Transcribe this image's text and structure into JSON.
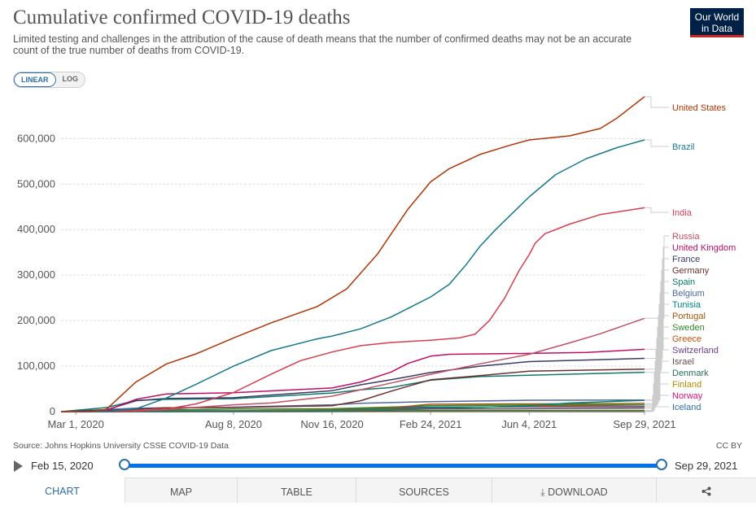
{
  "header": {
    "title": "Cumulative confirmed COVID-19 deaths",
    "subtitle": "Limited testing and challenges in the attribution of the cause of death means that the number of confirmed deaths may not be an accurate count of the true number of deaths from COVID-19.",
    "logo_line1": "Our World",
    "logo_line2": "in Data",
    "logo_color": "#002147",
    "logo_accent": "#ce261e"
  },
  "scale_toggle": {
    "linear": "LINEAR",
    "log": "LOG",
    "selected": "LINEAR"
  },
  "footer": {
    "source": "Source: Johns Hopkins University CSSE COVID-19 Data",
    "license": "CC BY"
  },
  "timeline": {
    "start": "Feb 15, 2020",
    "end": "Sep 29, 2021"
  },
  "tabs": [
    {
      "label": "CHART",
      "active": true
    },
    {
      "label": "MAP",
      "active": false
    },
    {
      "label": "TABLE",
      "active": false
    },
    {
      "label": "SOURCES",
      "active": false
    },
    {
      "label": "DOWNLOAD",
      "active": false,
      "icon": "download-icon"
    },
    {
      "label": "",
      "active": false,
      "icon": "share-icon"
    }
  ],
  "chart_data": {
    "type": "line",
    "title": "Cumulative confirmed COVID-19 deaths",
    "y_scale": "linear",
    "ylim": [
      0,
      690000
    ],
    "yticks": [
      0,
      100000,
      200000,
      300000,
      400000,
      500000,
      600000
    ],
    "ytick_labels": [
      "0",
      "100,000",
      "200,000",
      "300,000",
      "400,000",
      "500,000",
      "600,000"
    ],
    "xlim": [
      "2020-02-15",
      "2021-09-29"
    ],
    "xticks": [
      "2020-03-01",
      "2020-08-08",
      "2020-11-16",
      "2021-02-24",
      "2021-06-04",
      "2021-09-29"
    ],
    "xtick_labels": [
      "Mar 1, 2020",
      "Aug 8, 2020",
      "Nov 16, 2020",
      "Feb 24, 2021",
      "Jun 4, 2021",
      "Sep 29, 2021"
    ],
    "grid": "horizontal dashed",
    "legend": "right",
    "series": [
      {
        "name": "United States",
        "color": "#b13507",
        "points": [
          [
            "2020-02-15",
            0
          ],
          [
            "2020-03-15",
            100
          ],
          [
            "2020-04-01",
            5000
          ],
          [
            "2020-05-01",
            65000
          ],
          [
            "2020-06-01",
            105000
          ],
          [
            "2020-07-01",
            127000
          ],
          [
            "2020-08-08",
            162000
          ],
          [
            "2020-09-15",
            195000
          ],
          [
            "2020-11-01",
            231000
          ],
          [
            "2020-12-01",
            270000
          ],
          [
            "2021-01-01",
            346000
          ],
          [
            "2021-02-01",
            445000
          ],
          [
            "2021-02-24",
            505000
          ],
          [
            "2021-03-15",
            534000
          ],
          [
            "2021-04-15",
            565000
          ],
          [
            "2021-05-15",
            585000
          ],
          [
            "2021-06-04",
            597000
          ],
          [
            "2021-07-15",
            606000
          ],
          [
            "2021-08-15",
            622000
          ],
          [
            "2021-09-01",
            645000
          ],
          [
            "2021-09-29",
            692000
          ]
        ]
      },
      {
        "name": "Brazil",
        "color": "#18798b",
        "points": [
          [
            "2020-02-15",
            0
          ],
          [
            "2020-04-01",
            200
          ],
          [
            "2020-05-01",
            6000
          ],
          [
            "2020-06-01",
            30000
          ],
          [
            "2020-07-01",
            60000
          ],
          [
            "2020-08-08",
            100000
          ],
          [
            "2020-09-15",
            134000
          ],
          [
            "2020-11-01",
            160000
          ],
          [
            "2020-11-16",
            166000
          ],
          [
            "2020-12-15",
            182000
          ],
          [
            "2021-01-15",
            208000
          ],
          [
            "2021-02-24",
            252000
          ],
          [
            "2021-03-15",
            280000
          ],
          [
            "2021-04-01",
            323000
          ],
          [
            "2021-04-15",
            363000
          ],
          [
            "2021-05-01",
            400000
          ],
          [
            "2021-06-04",
            472000
          ],
          [
            "2021-07-01",
            521000
          ],
          [
            "2021-08-01",
            556000
          ],
          [
            "2021-09-01",
            580000
          ],
          [
            "2021-09-29",
            597000
          ]
        ]
      },
      {
        "name": "India",
        "color": "#d73c50",
        "points": [
          [
            "2020-02-15",
            0
          ],
          [
            "2020-04-15",
            400
          ],
          [
            "2020-06-01",
            5500
          ],
          [
            "2020-07-01",
            17000
          ],
          [
            "2020-08-08",
            42000
          ],
          [
            "2020-09-15",
            82000
          ],
          [
            "2020-10-15",
            112000
          ],
          [
            "2020-11-16",
            131000
          ],
          [
            "2020-12-15",
            145000
          ],
          [
            "2021-01-15",
            152000
          ],
          [
            "2021-02-24",
            157000
          ],
          [
            "2021-03-25",
            162000
          ],
          [
            "2021-04-10",
            170000
          ],
          [
            "2021-04-25",
            201000
          ],
          [
            "2021-05-10",
            249000
          ],
          [
            "2021-05-25",
            311000
          ],
          [
            "2021-06-04",
            345000
          ],
          [
            "2021-06-10",
            370000
          ],
          [
            "2021-06-20",
            391000
          ],
          [
            "2021-07-15",
            412000
          ],
          [
            "2021-08-15",
            433000
          ],
          [
            "2021-09-29",
            448000
          ]
        ]
      },
      {
        "name": "Russia",
        "color": "#c15065",
        "points": [
          [
            "2020-02-15",
            0
          ],
          [
            "2020-05-01",
            1100
          ],
          [
            "2020-06-01",
            4700
          ],
          [
            "2020-07-01",
            9500
          ],
          [
            "2020-08-08",
            15000
          ],
          [
            "2020-09-15",
            19000
          ],
          [
            "2020-11-16",
            34000
          ],
          [
            "2020-12-15",
            48000
          ],
          [
            "2021-01-15",
            63000
          ],
          [
            "2021-02-24",
            82000
          ],
          [
            "2021-04-15",
            105000
          ],
          [
            "2021-06-04",
            126000
          ],
          [
            "2021-07-15",
            151000
          ],
          [
            "2021-08-15",
            171000
          ],
          [
            "2021-09-29",
            205000
          ]
        ]
      },
      {
        "name": "United Kingdom",
        "color": "#be0f63",
        "points": [
          [
            "2020-02-15",
            0
          ],
          [
            "2020-03-15",
            30
          ],
          [
            "2020-04-01",
            2500
          ],
          [
            "2020-05-01",
            27000
          ],
          [
            "2020-06-01",
            39000
          ],
          [
            "2020-08-08",
            41500
          ],
          [
            "2020-11-16",
            52000
          ],
          [
            "2020-12-15",
            65000
          ],
          [
            "2021-01-15",
            87000
          ],
          [
            "2021-02-01",
            106000
          ],
          [
            "2021-02-24",
            122000
          ],
          [
            "2021-03-15",
            126000
          ],
          [
            "2021-06-04",
            128000
          ],
          [
            "2021-08-01",
            130000
          ],
          [
            "2021-09-29",
            137000
          ]
        ]
      },
      {
        "name": "France",
        "color": "#3a3b66",
        "points": [
          [
            "2020-02-15",
            0
          ],
          [
            "2020-04-01",
            4000
          ],
          [
            "2020-05-01",
            24000
          ],
          [
            "2020-06-01",
            29000
          ],
          [
            "2020-08-08",
            30500
          ],
          [
            "2020-11-16",
            46000
          ],
          [
            "2020-12-15",
            59000
          ],
          [
            "2021-01-15",
            70000
          ],
          [
            "2021-02-24",
            86000
          ],
          [
            "2021-04-15",
            100000
          ],
          [
            "2021-06-04",
            110000
          ],
          [
            "2021-09-29",
            117000
          ]
        ]
      },
      {
        "name": "Germany",
        "color": "#6e2f2f",
        "points": [
          [
            "2020-02-15",
            0
          ],
          [
            "2020-04-15",
            3500
          ],
          [
            "2020-06-01",
            8600
          ],
          [
            "2020-08-08",
            9200
          ],
          [
            "2020-11-16",
            13000
          ],
          [
            "2020-12-15",
            24000
          ],
          [
            "2021-01-15",
            45000
          ],
          [
            "2021-02-24",
            70000
          ],
          [
            "2021-04-15",
            79000
          ],
          [
            "2021-06-04",
            89000
          ],
          [
            "2021-09-29",
            93500
          ]
        ]
      },
      {
        "name": "Spain",
        "color": "#0e7a6b",
        "points": [
          [
            "2020-02-15",
            0
          ],
          [
            "2020-04-01",
            9000
          ],
          [
            "2020-05-01",
            24500
          ],
          [
            "2020-06-01",
            27000
          ],
          [
            "2020-08-08",
            28500
          ],
          [
            "2020-11-16",
            41000
          ],
          [
            "2020-12-15",
            48000
          ],
          [
            "2021-01-15",
            53000
          ],
          [
            "2021-02-24",
            69000
          ],
          [
            "2021-04-15",
            77000
          ],
          [
            "2021-06-04",
            80000
          ],
          [
            "2021-09-29",
            86500
          ]
        ]
      },
      {
        "name": "Belgium",
        "color": "#4c6a9c",
        "points": [
          [
            "2020-02-15",
            0
          ],
          [
            "2020-05-01",
            7500
          ],
          [
            "2020-08-08",
            9900
          ],
          [
            "2020-11-16",
            15000
          ],
          [
            "2020-12-15",
            18500
          ],
          [
            "2021-02-24",
            22000
          ],
          [
            "2021-06-04",
            25000
          ],
          [
            "2021-09-29",
            25500
          ]
        ]
      },
      {
        "name": "Tunisia",
        "color": "#00847e",
        "points": [
          [
            "2020-02-15",
            0
          ],
          [
            "2020-10-01",
            600
          ],
          [
            "2020-11-16",
            2200
          ],
          [
            "2021-01-15",
            6500
          ],
          [
            "2021-04-01",
            9000
          ],
          [
            "2021-06-04",
            12500
          ],
          [
            "2021-07-15",
            19000
          ],
          [
            "2021-09-29",
            24900
          ]
        ]
      },
      {
        "name": "Portugal",
        "color": "#a2570a",
        "points": [
          [
            "2020-02-15",
            0
          ],
          [
            "2020-05-01",
            1000
          ],
          [
            "2020-08-08",
            1750
          ],
          [
            "2020-11-16",
            3700
          ],
          [
            "2021-01-15",
            8500
          ],
          [
            "2021-02-24",
            16300
          ],
          [
            "2021-06-04",
            17000
          ],
          [
            "2021-09-29",
            18000
          ]
        ]
      },
      {
        "name": "Sweden",
        "color": "#2d8a2d",
        "points": [
          [
            "2020-02-15",
            0
          ],
          [
            "2020-05-01",
            2700
          ],
          [
            "2020-08-08",
            5750
          ],
          [
            "2020-11-16",
            6400
          ],
          [
            "2021-01-15",
            10000
          ],
          [
            "2021-02-24",
            12900
          ],
          [
            "2021-06-04",
            14500
          ],
          [
            "2021-09-29",
            14900
          ]
        ]
      },
      {
        "name": "Greece",
        "color": "#c4520f",
        "points": [
          [
            "2020-02-15",
            0
          ],
          [
            "2020-08-08",
            210
          ],
          [
            "2020-11-16",
            1300
          ],
          [
            "2021-01-15",
            5300
          ],
          [
            "2021-04-15",
            9700
          ],
          [
            "2021-06-04",
            12400
          ],
          [
            "2021-09-29",
            14700
          ]
        ]
      },
      {
        "name": "Switzerland",
        "color": "#6d3e91",
        "points": [
          [
            "2020-02-15",
            0
          ],
          [
            "2020-05-01",
            1700
          ],
          [
            "2020-08-08",
            2000
          ],
          [
            "2020-11-16",
            4000
          ],
          [
            "2021-01-15",
            8500
          ],
          [
            "2021-02-24",
            9600
          ],
          [
            "2021-06-04",
            10800
          ],
          [
            "2021-09-29",
            11100
          ]
        ]
      },
      {
        "name": "Israel",
        "color": "#654c4c",
        "points": [
          [
            "2020-02-15",
            0
          ],
          [
            "2020-08-08",
            600
          ],
          [
            "2020-11-16",
            2800
          ],
          [
            "2021-01-15",
            4000
          ],
          [
            "2021-02-24",
            5700
          ],
          [
            "2021-06-04",
            6400
          ],
          [
            "2021-09-29",
            7900
          ]
        ]
      },
      {
        "name": "Denmark",
        "color": "#286f5c",
        "points": [
          [
            "2020-02-15",
            0
          ],
          [
            "2020-05-01",
            450
          ],
          [
            "2020-11-16",
            780
          ],
          [
            "2021-02-24",
            2350
          ],
          [
            "2021-09-29",
            2650
          ]
        ]
      },
      {
        "name": "Finland",
        "color": "#b88a00",
        "points": [
          [
            "2020-02-15",
            0
          ],
          [
            "2020-06-01",
            320
          ],
          [
            "2020-11-16",
            370
          ],
          [
            "2021-02-24",
            730
          ],
          [
            "2021-09-29",
            1060
          ]
        ]
      },
      {
        "name": "Norway",
        "color": "#d7147a",
        "points": [
          [
            "2020-02-15",
            0
          ],
          [
            "2020-06-01",
            240
          ],
          [
            "2020-11-16",
            300
          ],
          [
            "2021-02-24",
            630
          ],
          [
            "2021-09-29",
            860
          ]
        ]
      },
      {
        "name": "Iceland",
        "color": "#2c6fa8",
        "points": [
          [
            "2020-02-15",
            0
          ],
          [
            "2020-05-01",
            10
          ],
          [
            "2021-09-29",
            33
          ]
        ]
      }
    ]
  }
}
